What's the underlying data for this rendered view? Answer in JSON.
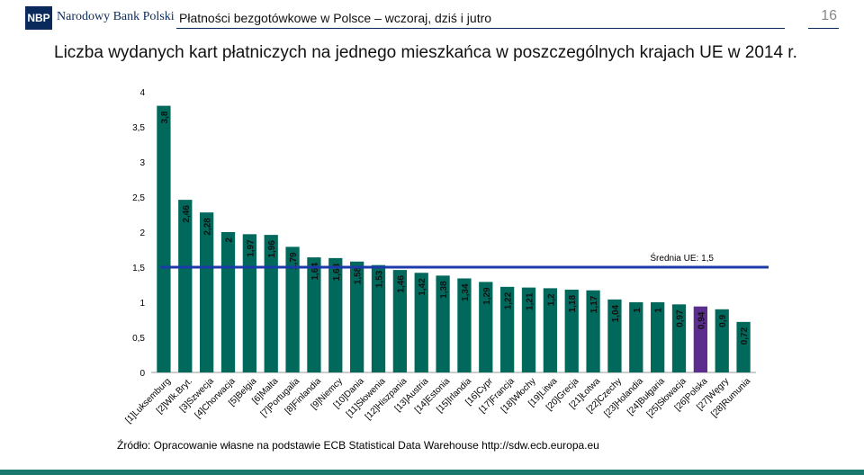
{
  "header": {
    "logo_abbr": "NBP",
    "logo_name": "Narodowy Bank Polski",
    "title": "Płatności bezgotówkowe w Polsce – wczoraj, dziś i jutro",
    "page_number": "16"
  },
  "colors": {
    "bar": "#00695c",
    "bar_highlight": "#5b2d8e",
    "average_line": "#1c3aa8",
    "brand": "#0b2a5c",
    "footer": "#1a7a6e"
  },
  "chart_data": {
    "type": "bar",
    "title": "Liczba wydanych kart płatniczych na jednego mieszkańca w poszczególnych krajach UE w 2014 r.",
    "xlabel": "",
    "ylabel": "",
    "ylim": [
      0,
      4
    ],
    "yticks": [
      "0",
      "0,5",
      "1",
      "1,5",
      "2",
      "2,5",
      "3",
      "3,5",
      "4"
    ],
    "grid": false,
    "categories": [
      "[1]Luksemburg",
      "[2]Wlk.Bryt.",
      "[3]Szwecja",
      "[4]Chorwacja",
      "[5]Belgia",
      "[6]Malta",
      "[7]Portugalia",
      "[8]Finlandia",
      "[9]Niemcy",
      "[10]Dania",
      "[11]Słowenia",
      "[12]Hiszpania",
      "[13]Austria",
      "[14]Estonia",
      "[15]Irlandia",
      "[16]Cypr",
      "[17]Francja",
      "[18]Włochy",
      "[19]Litwa",
      "[20]Grecja",
      "[21]Łotwa",
      "[22]Czechy",
      "[23]Holandia",
      "[24]Bułgaria",
      "[25]Słowacja",
      "[26]Polska",
      "[27]Węgry",
      "[28]Rumunia"
    ],
    "values": [
      3.8,
      2.46,
      2.28,
      2,
      1.97,
      1.96,
      1.79,
      1.64,
      1.63,
      1.58,
      1.53,
      1.46,
      1.42,
      1.38,
      1.34,
      1.29,
      1.22,
      1.21,
      1.2,
      1.18,
      1.17,
      1.04,
      1,
      1,
      0.97,
      0.94,
      0.9,
      0.72
    ],
    "value_labels": [
      "3,8",
      "2,46",
      "2,28",
      "2",
      "1,97",
      "1,96",
      "1,79",
      "1,64",
      "1,63",
      "1,58",
      "1,53",
      "1,46",
      "1,42",
      "1,38",
      "1,34",
      "1,29",
      "1,22",
      "1,21",
      "1,2",
      "1,18",
      "1,17",
      "1,04",
      "1",
      "1",
      "0,97",
      "0,94",
      "0,9",
      "0,72"
    ],
    "highlight_category": "[26]Polska",
    "average": {
      "value": 1.5,
      "label": "Średnia UE: 1,5"
    }
  },
  "source": "Źródło: Opracowanie własne na podstawie ECB Statistical Data Warehouse http://sdw.ecb.europa.eu"
}
